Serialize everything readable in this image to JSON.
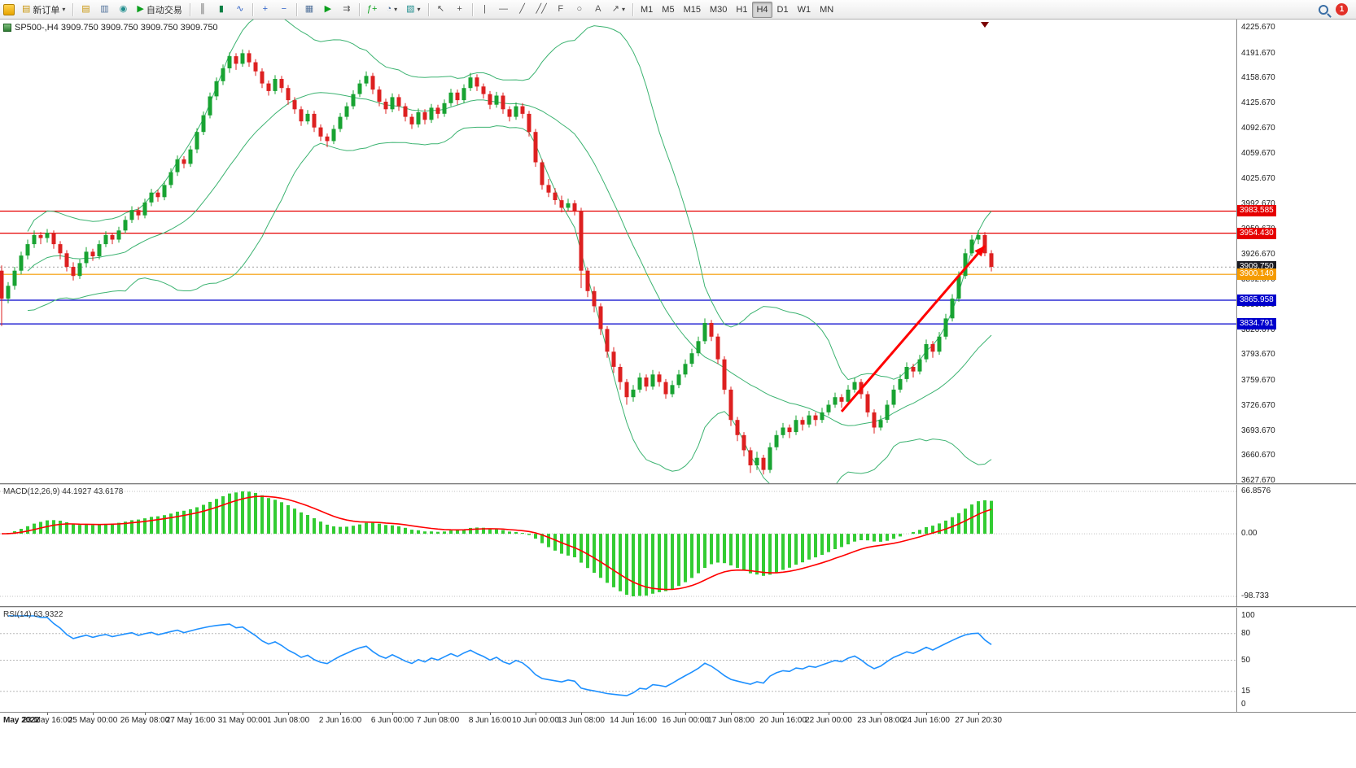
{
  "toolbar": {
    "new_order": "新订单",
    "auto_trading": "自动交易",
    "timeframes": [
      "M1",
      "M5",
      "M15",
      "M30",
      "H1",
      "H4",
      "D1",
      "W1",
      "MN"
    ],
    "active_timeframe": "H4",
    "notification_count": "1"
  },
  "icons": {
    "app": "",
    "new_order": "▤",
    "market_watch": "▤",
    "data_window": "▥",
    "navigator": "◉",
    "autotrading": "▶",
    "bar_chart": "║",
    "candlestick_chart": "▮",
    "line_chart": "∿",
    "zoom_in": "+",
    "zoom_out": "−",
    "tile_windows": "▦",
    "auto_scroll": "▶",
    "chart_shift": "⇉",
    "indicators": "ƒ+",
    "periods": "◔",
    "templates": "▧",
    "cursor": "↖",
    "crosshair": "+",
    "vline": "|",
    "hline": "—",
    "trendline": "╱",
    "channel": "╱╱",
    "fibonacci": "F",
    "shapes": "○",
    "text_tool": "A",
    "arrows": "↗",
    "caret": "▾"
  },
  "chart": {
    "title": "SP500-,H4 3909.750 3909.750 3909.750 3909.750",
    "axis_ticks": [
      "4225.670",
      "4191.670",
      "4158.670",
      "4125.670",
      "4092.670",
      "4059.670",
      "4025.670",
      "3992.670",
      "3959.670",
      "3926.670",
      "3892.670",
      "3859.670",
      "3826.670",
      "3793.670",
      "3759.670",
      "3726.670",
      "3693.670",
      "3660.670",
      "3627.670"
    ],
    "price_tags": [
      {
        "price": 3983.585,
        "label": "3983.585",
        "color": "#e60000"
      },
      {
        "price": 3954.43,
        "label": "3954.430",
        "color": "#e60000"
      },
      {
        "price": 3909.75,
        "label": "3909.750",
        "color": "#1c1c24"
      },
      {
        "price": 3900.14,
        "label": "3900.140",
        "color": "#f59b00"
      },
      {
        "price": 3865.958,
        "label": "3865.958",
        "color": "#0000cc"
      },
      {
        "price": 3834.791,
        "label": "3834.791",
        "color": "#0000cc"
      }
    ],
    "hlines": [
      {
        "price": 3983.585,
        "color": "#e60000",
        "style": "solid"
      },
      {
        "price": 3954.43,
        "color": "#e60000",
        "style": "solid"
      },
      {
        "price": 3909.75,
        "color": "#aaaaaa",
        "style": "dotted"
      },
      {
        "price": 3900.14,
        "color": "#f59b00",
        "style": "solid"
      },
      {
        "price": 3865.958,
        "color": "#0000cc",
        "style": "solid"
      },
      {
        "price": 3834.791,
        "color": "#0000cc",
        "style": "solid"
      }
    ],
    "trend_arrow": {
      "bar1": 129,
      "price1": 3719,
      "bar2": 151,
      "price2": 3938,
      "color": "#ff0000"
    },
    "shift_marker_bar": 151
  },
  "macd": {
    "label": "MACD(12,26,9) 44.1927 43.6178",
    "axis": [
      {
        "label": "66.8576",
        "value": 66.8576
      },
      {
        "label": "0.00",
        "value": 0
      },
      {
        "label": "-98.733",
        "value": -98.733
      }
    ]
  },
  "rsi": {
    "label": "RSI(14) 63.9322",
    "axis": [
      {
        "label": "100",
        "value": 100
      },
      {
        "label": "80",
        "value": 80
      },
      {
        "label": "50",
        "value": 50
      },
      {
        "label": "15",
        "value": 15
      },
      {
        "label": "0",
        "value": 0
      }
    ],
    "levels": [
      80,
      50,
      15
    ]
  },
  "time_axis": {
    "month_label": "May 2022",
    "ticks": [
      {
        "bar": 7,
        "label": "23 May 16:00"
      },
      {
        "bar": 14,
        "label": "25 May 00:00"
      },
      {
        "bar": 22,
        "label": "26 May 08:00"
      },
      {
        "bar": 29,
        "label": "27 May 16:00"
      },
      {
        "bar": 37,
        "label": "31 May 00:00"
      },
      {
        "bar": 44,
        "label": "1 Jun 08:00"
      },
      {
        "bar": 52,
        "label": "2 Jun 16:00"
      },
      {
        "bar": 60,
        "label": "6 Jun 00:00"
      },
      {
        "bar": 67,
        "label": "7 Jun 08:00"
      },
      {
        "bar": 75,
        "label": "8 Jun 16:00"
      },
      {
        "bar": 82,
        "label": "10 Jun 00:00"
      },
      {
        "bar": 89,
        "label": "13 Jun 08:00"
      },
      {
        "bar": 97,
        "label": "14 Jun 16:00"
      },
      {
        "bar": 105,
        "label": "16 Jun 00:00"
      },
      {
        "bar": 112,
        "label": "17 Jun 08:00"
      },
      {
        "bar": 120,
        "label": "20 Jun 16:00"
      },
      {
        "bar": 127,
        "label": "22 Jun 00:00"
      },
      {
        "bar": 135,
        "label": "23 Jun 08:00"
      },
      {
        "bar": 142,
        "label": "24 Jun 16:00"
      },
      {
        "bar": 150,
        "label": "27 Jun 20:30"
      }
    ]
  },
  "chart_data": {
    "type": "candlestick",
    "symbol": "SP500-",
    "timeframe": "H4",
    "current_price": 3909.75,
    "ylim": [
      3627.67,
      4225.67
    ],
    "overlays": [
      {
        "name": "Bollinger Bands",
        "period": 20,
        "deviation": 2,
        "color": "#3cb371"
      }
    ],
    "indicators": [
      {
        "name": "MACD",
        "params": [
          12,
          26,
          9
        ],
        "values": [
          44.1927,
          43.6178
        ],
        "range": [
          -98.733,
          66.8576
        ]
      },
      {
        "name": "RSI",
        "params": [
          14
        ],
        "value": 63.9322,
        "range": [
          0,
          100
        ]
      }
    ],
    "colors": {
      "up": "#18a332",
      "down": "#dd2020",
      "bands": "#3cb371",
      "macd_hist": "#33cc33",
      "macd_signal": "#ff0000",
      "rsi_line": "#1e90ff"
    },
    "ohlc": [
      [
        3905,
        3912,
        3832,
        3868
      ],
      [
        3868,
        3890,
        3862,
        3885
      ],
      [
        3885,
        3910,
        3880,
        3905
      ],
      [
        3905,
        3930,
        3900,
        3925
      ],
      [
        3925,
        3946,
        3920,
        3940
      ],
      [
        3940,
        3958,
        3935,
        3952
      ],
      [
        3952,
        3956,
        3940,
        3948
      ],
      [
        3948,
        3960,
        3942,
        3955
      ],
      [
        3955,
        3958,
        3934,
        3940
      ],
      [
        3940,
        3944,
        3920,
        3928
      ],
      [
        3928,
        3932,
        3904,
        3910
      ],
      [
        3910,
        3916,
        3892,
        3898
      ],
      [
        3898,
        3920,
        3894,
        3915
      ],
      [
        3915,
        3936,
        3910,
        3930
      ],
      [
        3930,
        3934,
        3918,
        3924
      ],
      [
        3924,
        3945,
        3920,
        3940
      ],
      [
        3940,
        3957,
        3936,
        3952
      ],
      [
        3952,
        3955,
        3940,
        3946
      ],
      [
        3946,
        3963,
        3942,
        3958
      ],
      [
        3958,
        3977,
        3954,
        3972
      ],
      [
        3972,
        3990,
        3968,
        3985
      ],
      [
        3985,
        3989,
        3972,
        3978
      ],
      [
        3978,
        4000,
        3974,
        3995
      ],
      [
        3995,
        4013,
        3990,
        4008
      ],
      [
        4008,
        4012,
        3996,
        4002
      ],
      [
        4002,
        4023,
        3998,
        4018
      ],
      [
        4018,
        4040,
        4014,
        4035
      ],
      [
        4035,
        4057,
        4030,
        4052
      ],
      [
        4052,
        4056,
        4040,
        4046
      ],
      [
        4046,
        4070,
        4042,
        4065
      ],
      [
        4065,
        4093,
        4060,
        4088
      ],
      [
        4088,
        4115,
        4084,
        4110
      ],
      [
        4110,
        4140,
        4106,
        4135
      ],
      [
        4135,
        4160,
        4130,
        4155
      ],
      [
        4155,
        4177,
        4150,
        4172
      ],
      [
        4172,
        4193,
        4166,
        4188
      ],
      [
        4188,
        4192,
        4170,
        4178
      ],
      [
        4178,
        4197,
        4174,
        4192
      ],
      [
        4192,
        4196,
        4174,
        4180
      ],
      [
        4180,
        4184,
        4162,
        4168
      ],
      [
        4168,
        4172,
        4146,
        4152
      ],
      [
        4152,
        4156,
        4136,
        4142
      ],
      [
        4142,
        4163,
        4138,
        4158
      ],
      [
        4158,
        4162,
        4140,
        4146
      ],
      [
        4146,
        4150,
        4124,
        4130
      ],
      [
        4130,
        4134,
        4112,
        4118
      ],
      [
        4118,
        4122,
        4096,
        4102
      ],
      [
        4102,
        4117,
        4098,
        4112
      ],
      [
        4112,
        4116,
        4088,
        4094
      ],
      [
        4094,
        4098,
        4076,
        4082
      ],
      [
        4082,
        4086,
        4068,
        4076
      ],
      [
        4076,
        4097,
        4072,
        4092
      ],
      [
        4092,
        4113,
        4088,
        4108
      ],
      [
        4108,
        4127,
        4104,
        4122
      ],
      [
        4122,
        4143,
        4118,
        4138
      ],
      [
        4138,
        4157,
        4134,
        4152
      ],
      [
        4152,
        4168,
        4148,
        4162
      ],
      [
        4162,
        4166,
        4138,
        4144
      ],
      [
        4144,
        4148,
        4122,
        4128
      ],
      [
        4128,
        4132,
        4112,
        4118
      ],
      [
        4118,
        4139,
        4114,
        4134
      ],
      [
        4134,
        4138,
        4116,
        4122
      ],
      [
        4122,
        4126,
        4102,
        4108
      ],
      [
        4108,
        4112,
        4092,
        4098
      ],
      [
        4098,
        4119,
        4094,
        4114
      ],
      [
        4114,
        4118,
        4098,
        4104
      ],
      [
        4104,
        4125,
        4100,
        4120
      ],
      [
        4120,
        4124,
        4106,
        4112
      ],
      [
        4112,
        4131,
        4108,
        4126
      ],
      [
        4126,
        4145,
        4122,
        4140
      ],
      [
        4140,
        4144,
        4124,
        4130
      ],
      [
        4130,
        4151,
        4126,
        4146
      ],
      [
        4146,
        4166,
        4142,
        4160
      ],
      [
        4160,
        4164,
        4142,
        4148
      ],
      [
        4148,
        4152,
        4132,
        4138
      ],
      [
        4138,
        4142,
        4118,
        4124
      ],
      [
        4124,
        4141,
        4120,
        4136
      ],
      [
        4136,
        4140,
        4112,
        4118
      ],
      [
        4118,
        4122,
        4102,
        4108
      ],
      [
        4108,
        4127,
        4104,
        4122
      ],
      [
        4122,
        4126,
        4106,
        4112
      ],
      [
        4112,
        4116,
        4082,
        4088
      ],
      [
        4088,
        4092,
        4042,
        4048
      ],
      [
        4048,
        4052,
        4012,
        4018
      ],
      [
        4018,
        4026,
        4002,
        4008
      ],
      [
        4008,
        4014,
        3992,
        3998
      ],
      [
        3998,
        4004,
        3982,
        3988
      ],
      [
        3988,
        4000,
        3984,
        3994
      ],
      [
        3994,
        3998,
        3978,
        3984
      ],
      [
        3984,
        3988,
        3882,
        3905
      ],
      [
        3905,
        3909,
        3870,
        3878
      ],
      [
        3878,
        3884,
        3850,
        3858
      ],
      [
        3858,
        3862,
        3820,
        3828
      ],
      [
        3828,
        3832,
        3790,
        3798
      ],
      [
        3798,
        3804,
        3770,
        3778
      ],
      [
        3778,
        3782,
        3748,
        3758
      ],
      [
        3758,
        3762,
        3728,
        3738
      ],
      [
        3738,
        3754,
        3732,
        3748
      ],
      [
        3748,
        3770,
        3744,
        3764
      ],
      [
        3764,
        3768,
        3746,
        3752
      ],
      [
        3752,
        3774,
        3748,
        3768
      ],
      [
        3768,
        3772,
        3752,
        3758
      ],
      [
        3758,
        3762,
        3736,
        3742
      ],
      [
        3742,
        3760,
        3738,
        3754
      ],
      [
        3754,
        3774,
        3750,
        3768
      ],
      [
        3768,
        3788,
        3764,
        3782
      ],
      [
        3782,
        3802,
        3778,
        3796
      ],
      [
        3796,
        3818,
        3792,
        3812
      ],
      [
        3812,
        3842,
        3808,
        3836
      ],
      [
        3836,
        3840,
        3812,
        3818
      ],
      [
        3818,
        3822,
        3782,
        3788
      ],
      [
        3788,
        3792,
        3742,
        3748
      ],
      [
        3748,
        3752,
        3700,
        3708
      ],
      [
        3708,
        3712,
        3680,
        3688
      ],
      [
        3688,
        3692,
        3660,
        3668
      ],
      [
        3668,
        3672,
        3638,
        3648
      ],
      [
        3648,
        3666,
        3642,
        3658
      ],
      [
        3658,
        3662,
        3636,
        3642
      ],
      [
        3642,
        3678,
        3638,
        3672
      ],
      [
        3672,
        3694,
        3668,
        3688
      ],
      [
        3688,
        3704,
        3684,
        3698
      ],
      [
        3698,
        3702,
        3684,
        3692
      ],
      [
        3692,
        3714,
        3688,
        3708
      ],
      [
        3708,
        3712,
        3694,
        3702
      ],
      [
        3702,
        3720,
        3698,
        3714
      ],
      [
        3714,
        3718,
        3700,
        3708
      ],
      [
        3708,
        3724,
        3704,
        3718
      ],
      [
        3718,
        3734,
        3714,
        3728
      ],
      [
        3728,
        3744,
        3724,
        3738
      ],
      [
        3738,
        3742,
        3724,
        3732
      ],
      [
        3732,
        3754,
        3728,
        3748
      ],
      [
        3748,
        3764,
        3744,
        3758
      ],
      [
        3758,
        3762,
        3736,
        3742
      ],
      [
        3742,
        3746,
        3712,
        3718
      ],
      [
        3718,
        3722,
        3690,
        3698
      ],
      [
        3698,
        3714,
        3694,
        3708
      ],
      [
        3708,
        3734,
        3704,
        3728
      ],
      [
        3728,
        3754,
        3724,
        3748
      ],
      [
        3748,
        3768,
        3744,
        3762
      ],
      [
        3762,
        3784,
        3758,
        3778
      ],
      [
        3778,
        3782,
        3764,
        3772
      ],
      [
        3772,
        3794,
        3768,
        3788
      ],
      [
        3788,
        3814,
        3784,
        3808
      ],
      [
        3808,
        3812,
        3790,
        3798
      ],
      [
        3798,
        3824,
        3794,
        3818
      ],
      [
        3818,
        3848,
        3814,
        3842
      ],
      [
        3842,
        3874,
        3838,
        3868
      ],
      [
        3868,
        3904,
        3864,
        3898
      ],
      [
        3898,
        3934,
        3894,
        3928
      ],
      [
        3928,
        3952,
        3924,
        3946
      ],
      [
        3946,
        3958,
        3940,
        3952
      ],
      [
        3952,
        3956,
        3924,
        3928
      ],
      [
        3928,
        3932,
        3904,
        3910
      ]
    ]
  }
}
